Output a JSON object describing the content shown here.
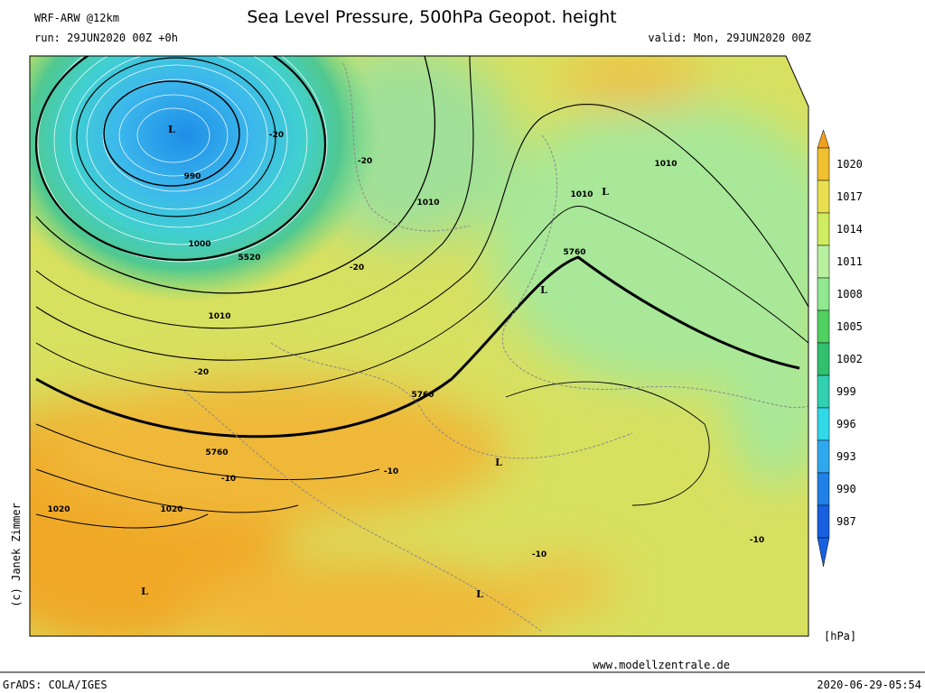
{
  "header": {
    "model": "WRF-ARW @12km",
    "run": "run: 29JUN2020 00Z +0h",
    "title": "Sea Level Pressure, 500hPa Geopot. height",
    "valid": "valid: Mon, 29JUN2020 00Z"
  },
  "colorbar": {
    "levels": [
      1020,
      1017,
      1014,
      1011,
      1008,
      1005,
      1002,
      999,
      996,
      993,
      990,
      987
    ],
    "unit": "[hPa]"
  },
  "map": {
    "labels": [
      "L",
      "990",
      "-20",
      "-20",
      "1000",
      "5520",
      "1010",
      "-20",
      "-20",
      "1010",
      "1010",
      "1010",
      "L",
      "5760",
      "L",
      "5760",
      "5760",
      "-10",
      "-10",
      "L",
      "1020",
      "1020",
      "L",
      "-10",
      "L",
      "-10"
    ]
  },
  "credit": "(c) Janek Zimmer",
  "website": "www.modellzentrale.de",
  "footer": {
    "left": "GrADS: COLA/IGES",
    "right": "2020-06-29-05:54"
  }
}
